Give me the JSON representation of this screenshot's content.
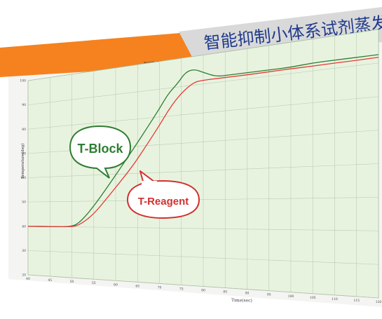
{
  "banner": {
    "text": "智能抑制小体系试剂蒸发"
  },
  "chart_data": {
    "type": "line",
    "title": "PCR Block and Tube temperature curve",
    "xlabel": "Time(sec)",
    "ylabel": "Temperature(deg)",
    "xlim": [
      40,
      120
    ],
    "ylim": [
      20,
      100
    ],
    "x_ticks": [
      40,
      45,
      50,
      55,
      60,
      65,
      70,
      75,
      80,
      85,
      90,
      95,
      100,
      105,
      110,
      115,
      120
    ],
    "x_tick_labels": [
      "40",
      "45",
      "50",
      "55",
      "60",
      "65",
      "70",
      "75",
      "80",
      "85",
      "90",
      "95",
      "100",
      "105",
      "110",
      "115",
      "120"
    ],
    "y_ticks": [
      20,
      30,
      40,
      50,
      60,
      70,
      80,
      90,
      100
    ],
    "y_tick_labels": [
      "20",
      "30",
      "40",
      "50",
      "60",
      "70",
      "80",
      "90",
      "100"
    ],
    "grid": true,
    "annotations": [
      {
        "text": "T-Block",
        "color": "#2e7d32"
      },
      {
        "text": "T-Reagent",
        "color": "#d32f2f"
      }
    ],
    "colors": {
      "block": "#2e7d32",
      "reagent": "#e53935",
      "background": "#e8f3df",
      "accent": "#f5821f"
    },
    "series": [
      {
        "name": "T-Block",
        "x": [
          40,
          45,
          50,
          52,
          55,
          58,
          61,
          64,
          67,
          70,
          72,
          74,
          76,
          78,
          80,
          83,
          86,
          90,
          95,
          100,
          105,
          110,
          115,
          120
        ],
        "y": [
          40,
          40,
          40,
          42,
          48,
          55,
          62,
          69,
          76,
          83,
          88,
          91,
          95,
          95.5,
          94,
          92,
          92,
          92,
          92,
          92,
          92.5,
          92.5,
          92.5,
          92.5
        ]
      },
      {
        "name": "T-Reagent",
        "x": [
          40,
          45,
          50,
          52,
          55,
          58,
          61,
          64,
          67,
          70,
          72,
          74,
          76,
          78,
          80,
          83,
          86,
          90,
          95,
          100,
          105,
          110,
          115,
          120
        ],
        "y": [
          40,
          40,
          40,
          41,
          45,
          51,
          57,
          63,
          70,
          77,
          82,
          86,
          89,
          91,
          91.3,
          91.3,
          91.3,
          91.3,
          91.4,
          91.5,
          91.5,
          91.6,
          91.6,
          91.7
        ]
      }
    ]
  }
}
